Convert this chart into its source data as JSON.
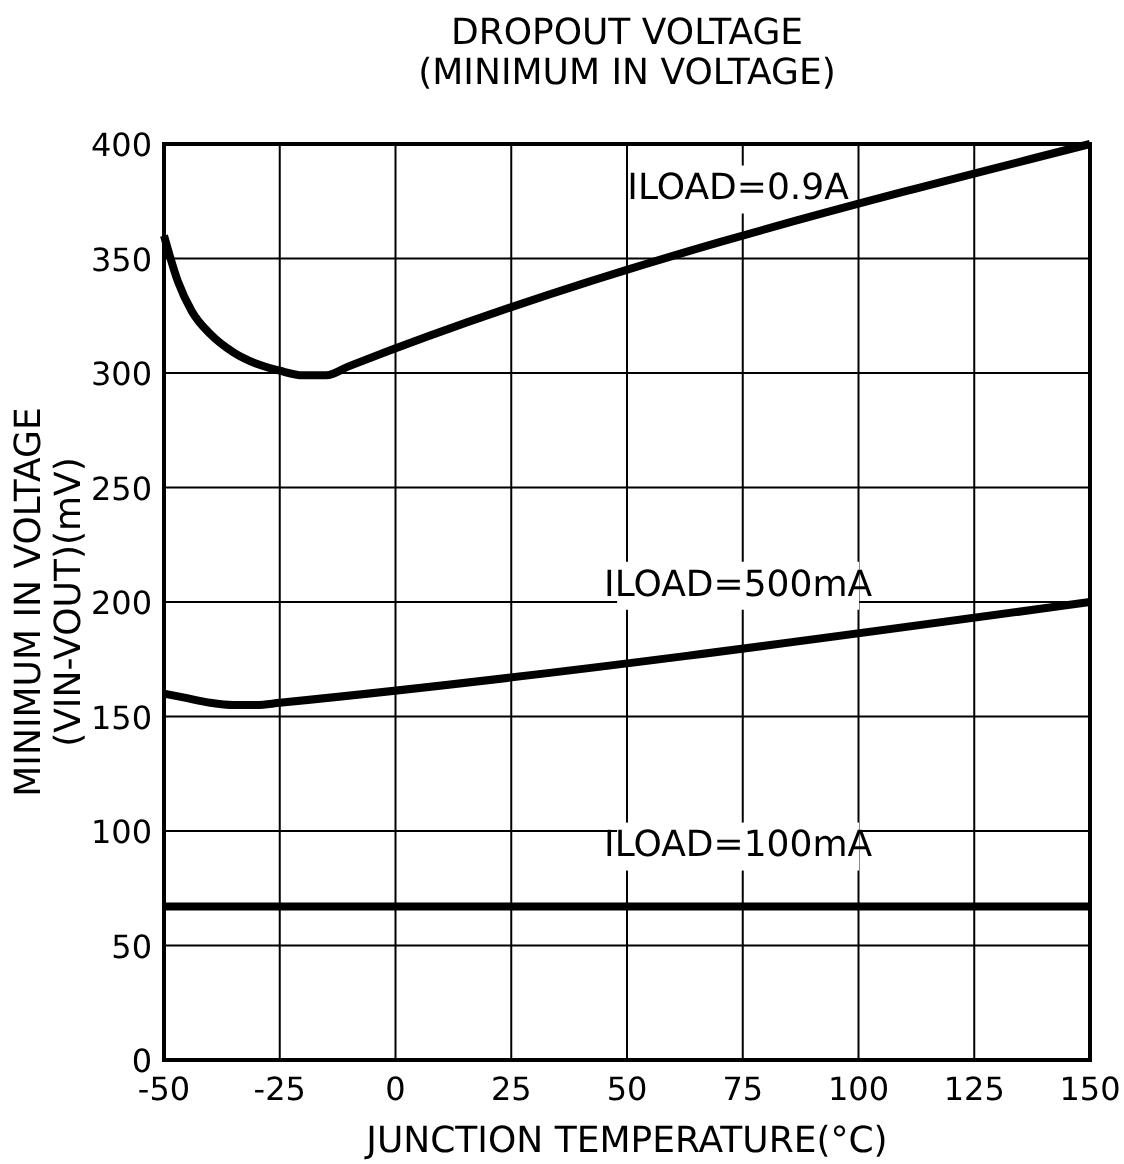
{
  "chart_data": {
    "type": "line",
    "title": "DROPOUT VOLTAGE",
    "subtitle": "(MINIMUM IN VOLTAGE)",
    "xlabel": "JUNCTION TEMPERATURE(°C)",
    "ylabel": "MINIMUM IN VOLTAGE\n(VIN-VOUT)(mV)",
    "xlim": [
      -50,
      150
    ],
    "xticks": [
      -50,
      -25,
      0,
      25,
      50,
      75,
      100,
      125,
      150
    ],
    "ylim": [
      0,
      400
    ],
    "yticks": [
      0,
      50,
      100,
      150,
      200,
      250,
      300,
      350,
      400
    ],
    "grid": true,
    "marker": "none",
    "line_style": "solid",
    "series": [
      {
        "name": "ILOAD=0.9A",
        "color": "#000000",
        "x": [
          -50,
          -47,
          -44,
          -40,
          -35,
          -30,
          -25,
          -20,
          -15,
          -10,
          150
        ],
        "values": [
          360,
          340,
          327,
          317,
          309,
          304,
          301,
          299,
          299,
          303,
          400
        ]
      },
      {
        "name": "ILOAD=500mA",
        "color": "#000000",
        "x": [
          -50,
          -45,
          -40,
          -35,
          -30,
          -25,
          150
        ],
        "values": [
          160,
          158,
          156,
          155,
          155,
          156,
          200
        ]
      },
      {
        "name": "ILOAD=100mA",
        "color": "#000000",
        "x": [
          -50,
          150
        ],
        "values": [
          67,
          67
        ]
      }
    ]
  }
}
